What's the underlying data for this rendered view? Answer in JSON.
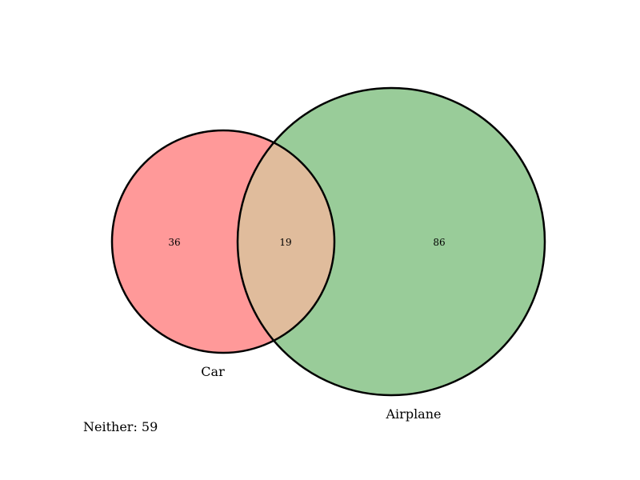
{
  "venn": {
    "sets": [
      {
        "key": "car",
        "label": "Car",
        "only_count": "36",
        "color": "#ff9999"
      },
      {
        "key": "airplane",
        "label": "Airplane",
        "only_count": "86",
        "color": "#99cc99"
      }
    ],
    "intersection": {
      "count": "19",
      "color": "#e0bc9c"
    },
    "neither": "Neither: 59",
    "outline_color": "#000000"
  }
}
